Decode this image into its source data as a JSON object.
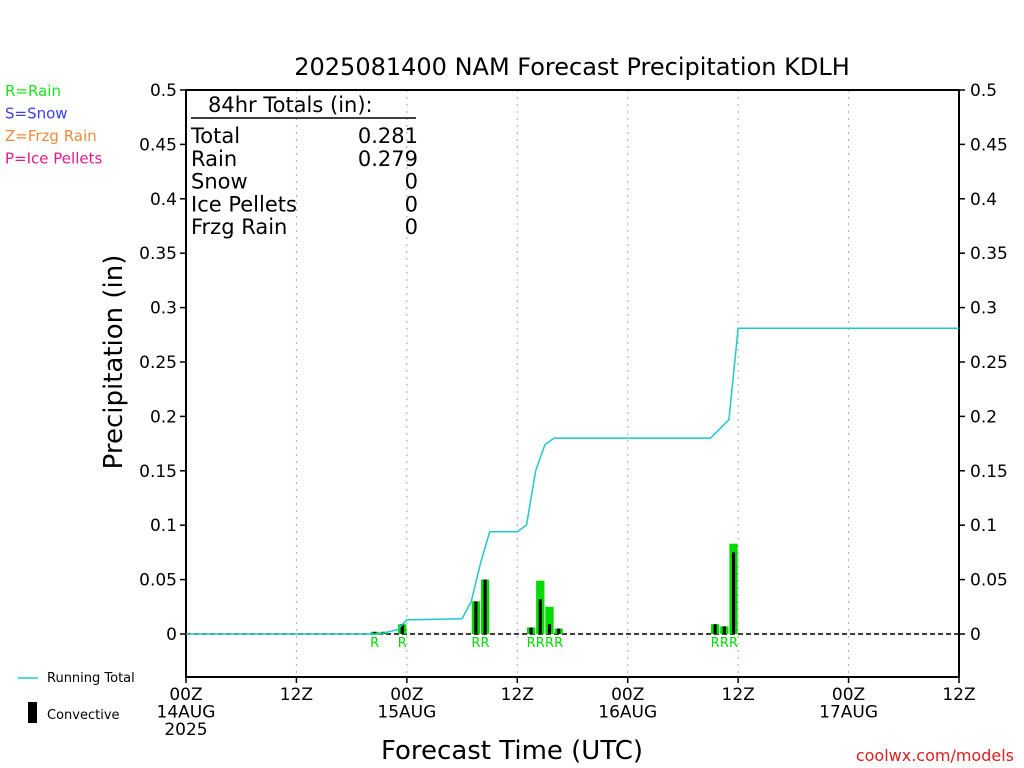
{
  "title": "2025081400 NAM Forecast Precipitation KDLH",
  "xlabel": "Forecast Time (UTC)",
  "ylabel": "Precipitation (in)",
  "credit": "coolwx.com/models",
  "type_legend": [
    {
      "text": "R=Rain",
      "color": "#19e619"
    },
    {
      "text": "S=Snow",
      "color": "#3c3cf0"
    },
    {
      "text": "Z=Frzg Rain",
      "color": "#f0893c"
    },
    {
      "text": "P=Ice Pellets",
      "color": "#e6198c"
    }
  ],
  "bottom_legend": {
    "running_total": "Running Total",
    "convective": "Convective"
  },
  "totals": {
    "header": "84hr Totals (in):",
    "rows": [
      {
        "label": "Total",
        "value": "0.281"
      },
      {
        "label": "Rain",
        "value": "0.279"
      },
      {
        "label": "Snow",
        "value": "0"
      },
      {
        "label": "Ice Pellets",
        "value": "0"
      },
      {
        "label": "Frzg Rain",
        "value": "0"
      }
    ]
  },
  "colors": {
    "rain_bar": "#00dc00",
    "convective_bar": "#000000",
    "running_total": "#20c8c8",
    "grid": "#aaaaaa",
    "credit": "#dc1e1e"
  },
  "chart_data": {
    "type": "bar",
    "xlim": [
      0,
      84
    ],
    "ylim": [
      0,
      0.5
    ],
    "yticks": [
      "0",
      "0.05",
      "0.1",
      "0.15",
      "0.2",
      "0.25",
      "0.3",
      "0.35",
      "0.4",
      "0.45",
      "0.5"
    ],
    "xticks": [
      {
        "hour": 0,
        "lines": [
          "00Z",
          "14AUG",
          "2025"
        ]
      },
      {
        "hour": 12,
        "lines": [
          "12Z"
        ]
      },
      {
        "hour": 24,
        "lines": [
          "00Z",
          "15AUG"
        ]
      },
      {
        "hour": 36,
        "lines": [
          "12Z"
        ]
      },
      {
        "hour": 48,
        "lines": [
          "00Z",
          "16AUG"
        ]
      },
      {
        "hour": 60,
        "lines": [
          "12Z"
        ]
      },
      {
        "hour": 72,
        "lines": [
          "00Z",
          "17AUG"
        ]
      },
      {
        "hour": 84,
        "lines": [
          "12Z"
        ]
      }
    ],
    "grid": "vertical dotted every 12 hours",
    "precip_bars": [
      {
        "hour": 21,
        "total": 0.002,
        "convective": 0.002,
        "ptype": "R"
      },
      {
        "hour": 22,
        "total": 0.002,
        "convective": 0.002,
        "ptype": ""
      },
      {
        "hour": 24,
        "total": 0.009,
        "convective": 0.009,
        "ptype": "R"
      },
      {
        "hour": 32,
        "total": 0.03,
        "convective": 0.03,
        "ptype": "R"
      },
      {
        "hour": 33,
        "total": 0.05,
        "convective": 0.05,
        "ptype": "R"
      },
      {
        "hour": 38,
        "total": 0.006,
        "convective": 0.006,
        "ptype": "R"
      },
      {
        "hour": 39,
        "total": 0.049,
        "convective": 0.032,
        "ptype": "R"
      },
      {
        "hour": 40,
        "total": 0.025,
        "convective": 0.009,
        "ptype": "R"
      },
      {
        "hour": 41,
        "total": 0.005,
        "convective": 0.005,
        "ptype": "R"
      },
      {
        "hour": 58,
        "total": 0.009,
        "convective": 0.009,
        "ptype": "R"
      },
      {
        "hour": 59,
        "total": 0.007,
        "convective": 0.007,
        "ptype": "R"
      },
      {
        "hour": 60,
        "total": 0.083,
        "convective": 0.075,
        "ptype": "R"
      }
    ],
    "running_total": [
      [
        0,
        0
      ],
      [
        21,
        0.0
      ],
      [
        22,
        0.002
      ],
      [
        23,
        0.004
      ],
      [
        24,
        0.013
      ],
      [
        30,
        0.014
      ],
      [
        31,
        0.03
      ],
      [
        32,
        0.065
      ],
      [
        33,
        0.094
      ],
      [
        36,
        0.094
      ],
      [
        37,
        0.1
      ],
      [
        38,
        0.15
      ],
      [
        39,
        0.174
      ],
      [
        40,
        0.18
      ],
      [
        57,
        0.18
      ],
      [
        59,
        0.197
      ],
      [
        60,
        0.281
      ],
      [
        84,
        0.281
      ]
    ]
  }
}
